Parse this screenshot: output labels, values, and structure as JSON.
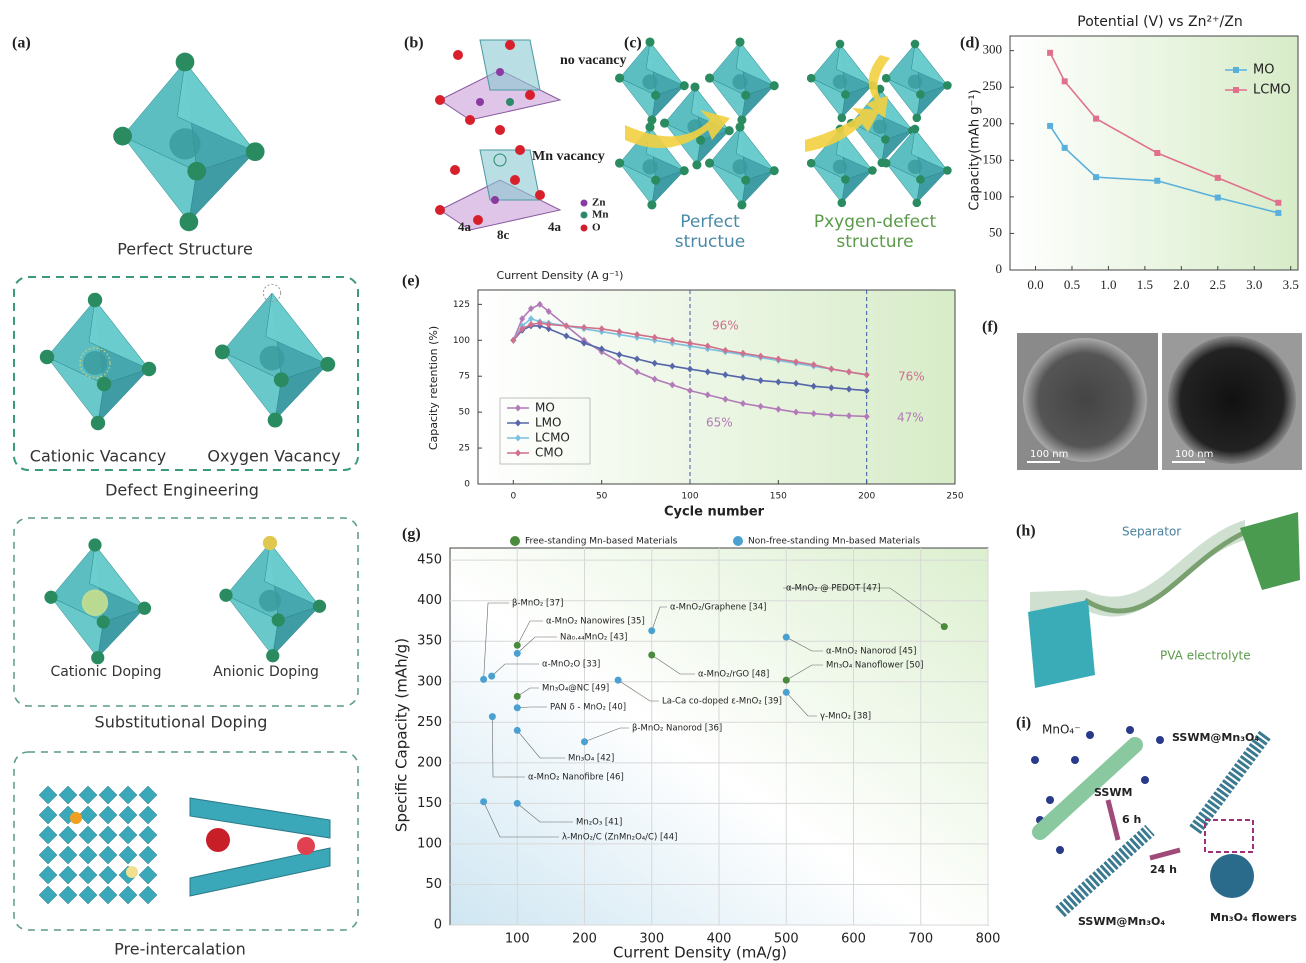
{
  "panels": {
    "a": {
      "label": "(a)",
      "perfect": "Perfect Structure",
      "cationic_vacancy": "Cationic Vacancy",
      "oxygen_vacancy": "Oxygen Vacancy",
      "defect": "Defect Engineering",
      "cationic_doping": "Cationic Doping",
      "anionic_doping": "Anionic Doping",
      "substitutional": "Substitutional Doping",
      "pre": "Pre-intercalation"
    },
    "b": {
      "label": "(b)",
      "no_vacancy": "no vacancy",
      "mn_vacancy": "Mn vacancy",
      "site_left": "4a",
      "site_mid": "8c",
      "site_right": "4a",
      "legend": [
        "Zn",
        "Mn",
        "O"
      ]
    },
    "c": {
      "label": "(c)",
      "perfect": [
        "Perfect",
        "structue"
      ],
      "defect": [
        "Pxygen-defect",
        "structure"
      ]
    },
    "f": {
      "label": "(f)",
      "scale_bars": [
        "100 nm",
        "100 nm"
      ]
    },
    "h": {
      "label": "(h)",
      "separator": "Separator",
      "electrolyte": "PVA electrolyte"
    },
    "i": {
      "label": "(i)",
      "ion": "MnO₄⁻",
      "wire": "SSWM",
      "step1": "6 h",
      "step2": "24 h",
      "product_top": "SSWM@Mn₃O₄",
      "product_bottom": "SSWM@Mn₃O₄",
      "flowers": "Mn₃O₄ flowers"
    }
  },
  "chart_data": [
    {
      "type": "line",
      "panel": "(d)",
      "title": "Potential (V) vs Zn²⁺/Zn",
      "ylabel": "Capacity(mAh g⁻¹)",
      "x": [
        0.2,
        0.4,
        0.83,
        1.67,
        2.5,
        3.33
      ],
      "series": [
        {
          "name": "MO",
          "color": "#5ab0dc",
          "values": [
            197,
            167,
            127,
            122,
            99,
            78
          ]
        },
        {
          "name": "LCMO",
          "color": "#e0708c",
          "values": [
            297,
            258,
            207,
            160,
            126,
            92
          ]
        }
      ],
      "xlim": [
        -0.35,
        3.6
      ],
      "ylim": [
        0,
        320
      ],
      "xticks": [
        {
          "value": 0,
          "label": "0.0"
        },
        0.5,
        {
          "value": 1,
          "label": "1.0"
        },
        1.5,
        {
          "value": 2,
          "label": "2.0"
        },
        2.5,
        {
          "value": 3,
          "label": "3.0"
        },
        3.5
      ],
      "yticks": [
        0,
        50,
        100,
        150,
        200,
        250,
        300
      ],
      "legend": "upper right",
      "marker": "square"
    },
    {
      "type": "line",
      "panel": "(e)",
      "title": "Current Density (A g⁻¹)",
      "xlabel": "Cycle number",
      "ylabel": "Capacity retention (%)",
      "x": [
        0,
        5,
        10,
        15,
        20,
        30,
        40,
        50,
        60,
        70,
        80,
        90,
        100,
        110,
        120,
        130,
        140,
        150,
        160,
        170,
        180,
        190,
        200
      ],
      "series": [
        {
          "name": "MO",
          "color": "#b27ab8",
          "values": [
            100,
            115,
            122,
            125,
            120,
            110,
            100,
            92,
            85,
            78,
            73,
            69,
            65,
            62,
            59,
            56,
            54,
            52,
            50,
            49,
            48,
            47.5,
            47
          ]
        },
        {
          "name": "LMO",
          "color": "#5566aa",
          "values": [
            100,
            107,
            110,
            110,
            108,
            103,
            98,
            94,
            90,
            87,
            84,
            82,
            80,
            78,
            76,
            74,
            72,
            71,
            70,
            68,
            67,
            66,
            65
          ]
        },
        {
          "name": "LCMO",
          "color": "#7cc0e0",
          "values": [
            100,
            110,
            115,
            113,
            112,
            110,
            108,
            106,
            104,
            102,
            100,
            98,
            96,
            94,
            92,
            90,
            88,
            86,
            84,
            82,
            80,
            78,
            76
          ]
        },
        {
          "name": "CMO",
          "color": "#d0708c",
          "values": [
            100,
            108,
            111,
            112,
            111,
            110,
            109,
            108,
            106,
            104,
            102,
            100,
            98,
            96,
            93,
            91,
            89,
            87,
            85,
            83,
            80,
            78,
            76
          ]
        }
      ],
      "xlim": [
        -20,
        250
      ],
      "ylim": [
        0,
        135
      ],
      "xticks": [
        0,
        50,
        100,
        150,
        200,
        250
      ],
      "yticks": [
        0,
        25,
        50,
        75,
        100,
        125
      ],
      "legend": "lower left",
      "marker": "diamond",
      "vlines": [
        100,
        200
      ],
      "annotations": [
        "96%",
        "76%",
        "65%",
        "47%"
      ]
    },
    {
      "type": "scatter",
      "panel": "(g)",
      "xlabel": "Current Density (mA/g)",
      "ylabel": "Specific Capacity (mAh/g)",
      "xlim": [
        0,
        800
      ],
      "ylim": [
        0,
        465
      ],
      "xticks": [
        100,
        200,
        300,
        400,
        500,
        600,
        700,
        800
      ],
      "yticks": [
        0,
        50,
        100,
        150,
        200,
        250,
        300,
        350,
        400,
        450
      ],
      "grid": true,
      "legend": "top",
      "series": [
        {
          "name": "Free-standing Mn-based Materials",
          "color": "#4a8a3c",
          "x": [
            100,
            100,
            300,
            500,
            735
          ],
          "values": [
            345,
            282,
            333,
            302,
            368
          ],
          "point_labels": [
            "α-MnO₂ Nanowires [35]",
            "Mn₃O₄@NC [49]",
            "α-MnO₂/rGO [48]",
            "Mn₃O₄ Nanoflower [50]",
            "α-MnO₂ @ PEDOT [47]"
          ]
        },
        {
          "name": "Non-free-standing Mn-based Materials",
          "color": "#4aa0d0",
          "x": [
            50,
            62,
            63,
            100,
            100,
            100,
            100,
            50,
            200,
            300,
            250,
            500,
            500
          ],
          "values": [
            303,
            307,
            257,
            335,
            268,
            240,
            150,
            152,
            226,
            363,
            302,
            355,
            287
          ],
          "point_labels": [
            "β-MnO₂ [37]",
            "α-MnO₂O [33]",
            "α-MnO₂ Nanofibre [46]",
            "Na₀.₄₄MnO₂ [43]",
            "PAN δ - MnO₂ [40]",
            "Mn₃O₄ [42]",
            "Mn₂O₃ [41]",
            "λ-MnO₂/C (ZnMn₂O₄/C) [44]",
            "β-MnO₂ Nanorod [36]",
            "α-MnO₂/Graphene [34]",
            "La-Ca co-doped ε-MnO₂ [39]",
            "α-MnO₂ Nanorod [45]",
            "γ-MnO₂ [38]"
          ]
        }
      ]
    }
  ]
}
